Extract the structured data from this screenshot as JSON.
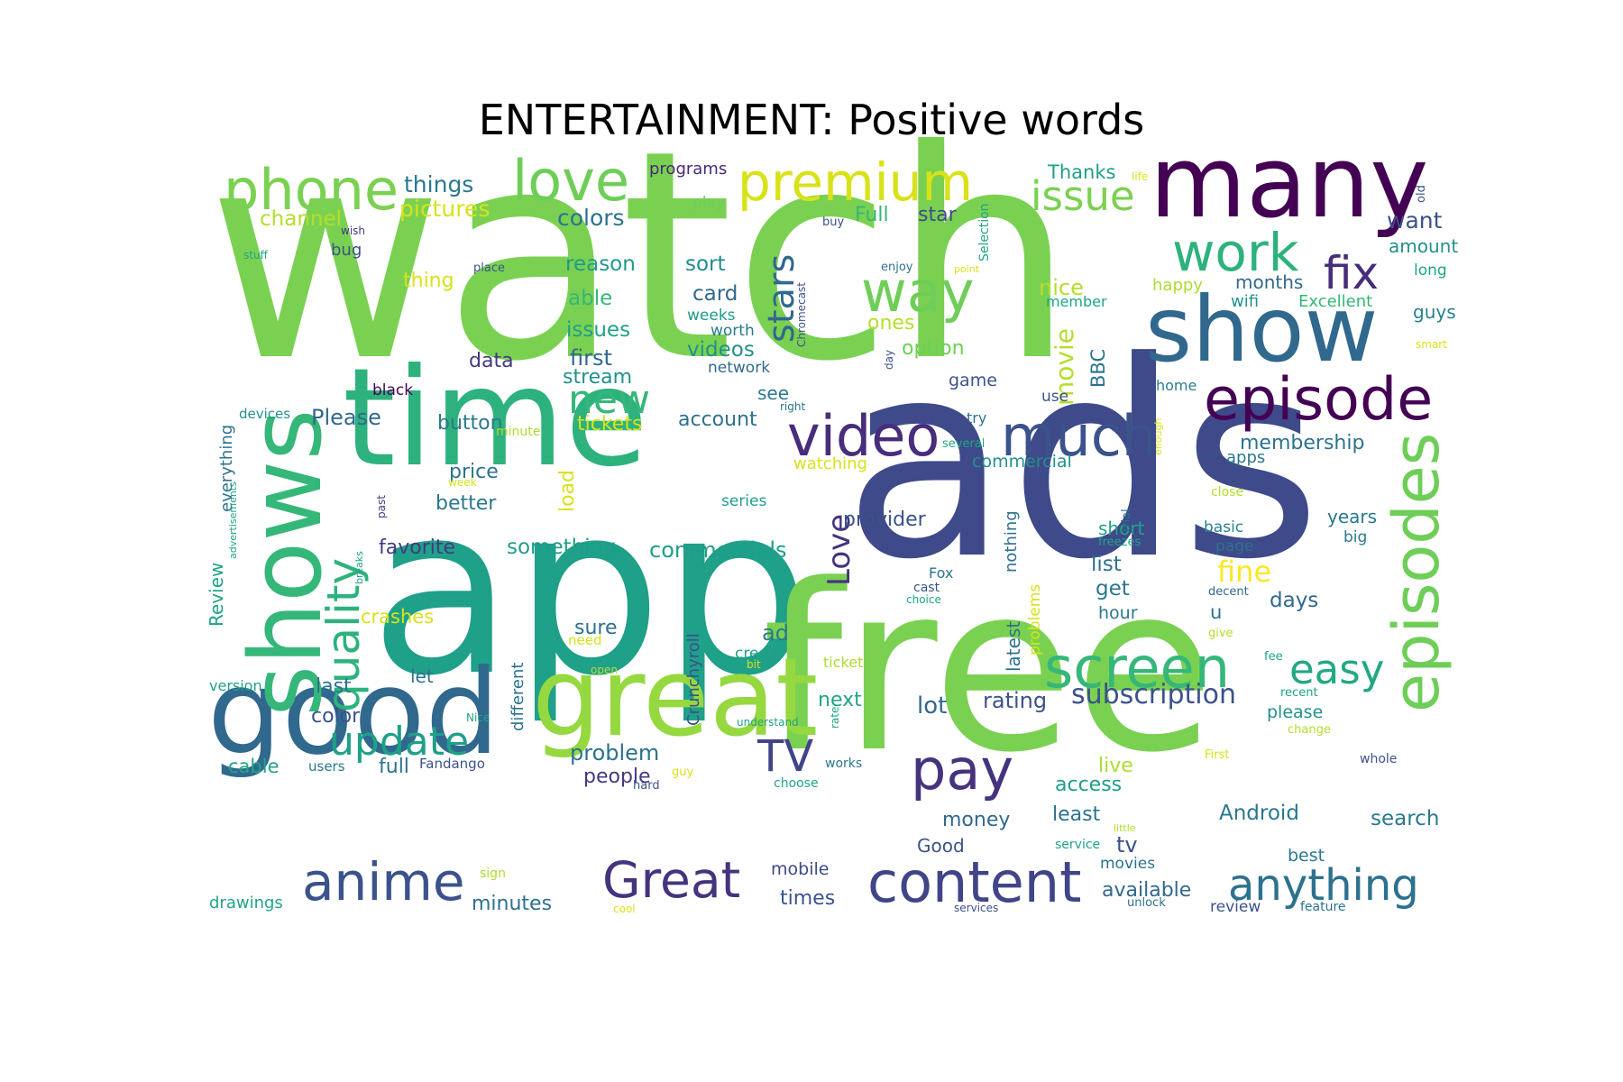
{
  "title": "ENTERTAINMENT: Positive words",
  "words": [
    {
      "text": "watch",
      "color": "#7ad151"
    },
    {
      "text": "ads",
      "color": "#3e4a89"
    },
    {
      "text": "app",
      "color": "#1fa088"
    },
    {
      "text": "free",
      "color": "#7ad151"
    },
    {
      "text": "time",
      "color": "#2db27d"
    },
    {
      "text": "good",
      "color": "#31688e"
    },
    {
      "text": "great",
      "color": "#95d840"
    },
    {
      "text": "many",
      "color": "#440154"
    },
    {
      "text": "show",
      "color": "#31688e"
    },
    {
      "text": "shows",
      "color": "#35b779"
    },
    {
      "text": "episode",
      "color": "#440154"
    },
    {
      "text": "episodes",
      "color": "#6ece58"
    },
    {
      "text": "phone",
      "color": "#7ad151"
    },
    {
      "text": "love",
      "color": "#6ece58"
    },
    {
      "text": "premium",
      "color": "#d8e219"
    },
    {
      "text": "work",
      "color": "#2db27d"
    },
    {
      "text": "way",
      "color": "#6ece58"
    },
    {
      "text": "video",
      "color": "#472d7b"
    },
    {
      "text": "much",
      "color": "#3b528b"
    },
    {
      "text": "screen",
      "color": "#35b779"
    },
    {
      "text": "content",
      "color": "#414487"
    },
    {
      "text": "anime",
      "color": "#3b528b"
    },
    {
      "text": "Great",
      "color": "#46337e"
    },
    {
      "text": "pay",
      "color": "#46337e"
    },
    {
      "text": "anything",
      "color": "#2c728e"
    },
    {
      "text": "fix",
      "color": "#472d7b"
    },
    {
      "text": "issue",
      "color": "#7ad151"
    },
    {
      "text": "quality",
      "color": "#2db27d"
    },
    {
      "text": "update",
      "color": "#1fa088"
    },
    {
      "text": "new",
      "color": "#35b779"
    },
    {
      "text": "TV",
      "color": "#414487"
    },
    {
      "text": "easy",
      "color": "#22a884"
    },
    {
      "text": "stars",
      "color": "#31688e"
    },
    {
      "text": "Love",
      "color": "#46327e"
    },
    {
      "text": "subscription",
      "color": "#3b528b"
    },
    {
      "text": "fine",
      "color": "#fde725"
    },
    {
      "text": "things",
      "color": "#2a788e"
    },
    {
      "text": "pictures",
      "color": "#d8e219"
    },
    {
      "text": "channel",
      "color": "#b5de2b"
    },
    {
      "text": "colors",
      "color": "#2c728e"
    },
    {
      "text": "Full",
      "color": "#35b779"
    },
    {
      "text": "star",
      "color": "#3e4a89"
    },
    {
      "text": "want",
      "color": "#3b528b"
    },
    {
      "text": "amount",
      "color": "#21918c"
    },
    {
      "text": "reason",
      "color": "#1f9a8a"
    },
    {
      "text": "sort",
      "color": "#228c8d"
    },
    {
      "text": "card",
      "color": "#31688e"
    },
    {
      "text": "able",
      "color": "#35b779"
    },
    {
      "text": "issues",
      "color": "#1fa088"
    },
    {
      "text": "first",
      "color": "#31688e"
    },
    {
      "text": "videos",
      "color": "#21918c"
    },
    {
      "text": "stream",
      "color": "#21918c"
    },
    {
      "text": "data",
      "color": "#443983"
    },
    {
      "text": "thing",
      "color": "#d8e219"
    },
    {
      "text": "bug",
      "color": "#3b528b"
    },
    {
      "text": "nice",
      "color": "#b5de2b"
    },
    {
      "text": "ones",
      "color": "#b5de2b"
    },
    {
      "text": "option",
      "color": "#6ece58"
    },
    {
      "text": "movie",
      "color": "#b5de2b"
    },
    {
      "text": "BBC",
      "color": "#2c728e"
    },
    {
      "text": "months",
      "color": "#31688e"
    },
    {
      "text": "wifi",
      "color": "#21918c"
    },
    {
      "text": "Excellent",
      "color": "#35b779"
    },
    {
      "text": "guys",
      "color": "#26828e"
    },
    {
      "text": "happy",
      "color": "#addc30"
    },
    {
      "text": "long",
      "color": "#20a486"
    },
    {
      "text": "member",
      "color": "#20a486"
    },
    {
      "text": "Thanks",
      "color": "#1f9e89"
    },
    {
      "text": "programs",
      "color": "#482878"
    },
    {
      "text": "play",
      "color": "#6ece58"
    },
    {
      "text": "weeks",
      "color": "#1f9a8a"
    },
    {
      "text": "worth",
      "color": "#2a788e"
    },
    {
      "text": "network",
      "color": "#31688e"
    },
    {
      "text": "game",
      "color": "#3b528b"
    },
    {
      "text": "use",
      "color": "#3b528b"
    },
    {
      "text": "home",
      "color": "#27808e"
    },
    {
      "text": "see",
      "color": "#2a788e"
    },
    {
      "text": "tickets",
      "color": "#d8e219"
    },
    {
      "text": "account",
      "color": "#2c728e"
    },
    {
      "text": "Please",
      "color": "#31688e"
    },
    {
      "text": "button",
      "color": "#2a788e"
    },
    {
      "text": "price",
      "color": "#2c728e"
    },
    {
      "text": "better",
      "color": "#2a788e"
    },
    {
      "text": "load",
      "color": "#d8e219"
    },
    {
      "text": "favorite",
      "color": "#443983"
    },
    {
      "text": "something",
      "color": "#1f9e89"
    },
    {
      "text": "commercials",
      "color": "#1f9e89"
    },
    {
      "text": "provider",
      "color": "#3b528b"
    },
    {
      "text": "membership",
      "color": "#2c728e"
    },
    {
      "text": "commercial",
      "color": "#21918c"
    },
    {
      "text": "apps",
      "color": "#2a788e"
    },
    {
      "text": "years",
      "color": "#2a788e"
    },
    {
      "text": "short",
      "color": "#20a486"
    },
    {
      "text": "basic",
      "color": "#26828e"
    },
    {
      "text": "page",
      "color": "#2c728e"
    },
    {
      "text": "big",
      "color": "#2a788e"
    },
    {
      "text": "list",
      "color": "#2c728e"
    },
    {
      "text": "get",
      "color": "#2a788e"
    },
    {
      "text": "hour",
      "color": "#2a788e"
    },
    {
      "text": "u",
      "color": "#2c728e"
    },
    {
      "text": "days",
      "color": "#31688e"
    },
    {
      "text": "crashes",
      "color": "#d8e219"
    },
    {
      "text": "sure",
      "color": "#2c728e"
    },
    {
      "text": "ad",
      "color": "#2a788e"
    },
    {
      "text": "credit",
      "color": "#1f9e89"
    },
    {
      "text": "let",
      "color": "#2c728e"
    },
    {
      "text": "last",
      "color": "#2c728e"
    },
    {
      "text": "color",
      "color": "#3b528b"
    },
    {
      "text": "next",
      "color": "#20a486"
    },
    {
      "text": "lot",
      "color": "#31688e"
    },
    {
      "text": "rating",
      "color": "#3b528b"
    },
    {
      "text": "problem",
      "color": "#2c728e"
    },
    {
      "text": "people",
      "color": "#443983"
    },
    {
      "text": "live",
      "color": "#addc30"
    },
    {
      "text": "access",
      "color": "#1f9e89"
    },
    {
      "text": "least",
      "color": "#2c728e"
    },
    {
      "text": "money",
      "color": "#31688e"
    },
    {
      "text": "Android",
      "color": "#2a788e"
    },
    {
      "text": "search",
      "color": "#2a788e"
    },
    {
      "text": "please",
      "color": "#21918c"
    },
    {
      "text": "best",
      "color": "#2a788e"
    },
    {
      "text": "Good",
      "color": "#3b528b"
    },
    {
      "text": "tv",
      "color": "#3b528b"
    },
    {
      "text": "movies",
      "color": "#2c728e"
    },
    {
      "text": "available",
      "color": "#31688e"
    },
    {
      "text": "review",
      "color": "#3b528b"
    },
    {
      "text": "feature",
      "color": "#2c728e"
    },
    {
      "text": "mobile",
      "color": "#3e4a89"
    },
    {
      "text": "times",
      "color": "#3b528b"
    },
    {
      "text": "minutes",
      "color": "#2c728e"
    },
    {
      "text": "drawings",
      "color": "#20a486"
    },
    {
      "text": "cable",
      "color": "#20a486"
    },
    {
      "text": "full",
      "color": "#2c728e"
    },
    {
      "text": "users",
      "color": "#2a788e"
    },
    {
      "text": "Fandango",
      "color": "#3b528b"
    },
    {
      "text": "version",
      "color": "#20a486"
    },
    {
      "text": "Review",
      "color": "#20a486"
    },
    {
      "text": "everything",
      "color": "#2c728e"
    },
    {
      "text": "devices",
      "color": "#21918c"
    },
    {
      "text": "black",
      "color": "#440154"
    },
    {
      "text": "minute",
      "color": "#addc30"
    },
    {
      "text": "watching",
      "color": "#d8e219"
    },
    {
      "text": "series",
      "color": "#1f9e89"
    },
    {
      "text": "ticket",
      "color": "#addc30"
    },
    {
      "text": "works",
      "color": "#2a788e"
    },
    {
      "text": "whole",
      "color": "#3b528b"
    },
    {
      "text": "First",
      "color": "#d8e219"
    },
    {
      "text": "different",
      "color": "#2c728e"
    },
    {
      "text": "Crunchyroll",
      "color": "#3b528b"
    },
    {
      "text": "latest",
      "color": "#2c728e"
    },
    {
      "text": "nothing",
      "color": "#2c728e"
    },
    {
      "text": "problems",
      "color": "#d8e219"
    },
    {
      "text": "try",
      "color": "#2c728e"
    },
    {
      "text": "several",
      "color": "#20a486"
    },
    {
      "text": "close",
      "color": "#b5de2b"
    },
    {
      "text": "trial",
      "color": "#2c728e"
    },
    {
      "text": "freezes",
      "color": "#20a486"
    },
    {
      "text": "decent",
      "color": "#31688e"
    },
    {
      "text": "give",
      "color": "#b5de2b"
    },
    {
      "text": "fee",
      "color": "#20a486"
    },
    {
      "text": "recent",
      "color": "#20a486"
    },
    {
      "text": "change",
      "color": "#b5de2b"
    },
    {
      "text": "Fox",
      "color": "#2c728e"
    },
    {
      "text": "cast",
      "color": "#3b528b"
    },
    {
      "text": "choice",
      "color": "#20a486"
    },
    {
      "text": "need",
      "color": "#d8e219"
    },
    {
      "text": "open",
      "color": "#b5de2b"
    },
    {
      "text": "bit",
      "color": "#d8e219"
    },
    {
      "text": "understand",
      "color": "#20a486"
    },
    {
      "text": "rate",
      "color": "#20a486"
    },
    {
      "text": "choose",
      "color": "#20a486"
    },
    {
      "text": "hard",
      "color": "#3b528b"
    },
    {
      "text": "guy",
      "color": "#d8e219"
    },
    {
      "text": "Nice",
      "color": "#20a486"
    },
    {
      "text": "sign",
      "color": "#addc30"
    },
    {
      "text": "service",
      "color": "#20a486"
    },
    {
      "text": "little",
      "color": "#b5de2b"
    },
    {
      "text": "unlock",
      "color": "#2c728e"
    },
    {
      "text": "services",
      "color": "#3b528b"
    },
    {
      "text": "cool",
      "color": "#d8e219"
    },
    {
      "text": "week",
      "color": "#d8e219"
    },
    {
      "text": "advertisements",
      "color": "#20a486"
    },
    {
      "text": "breaks",
      "color": "#20a486"
    },
    {
      "text": "past",
      "color": "#443983"
    },
    {
      "text": "stuff",
      "color": "#20a486"
    },
    {
      "text": "wish",
      "color": "#443983"
    },
    {
      "text": "place",
      "color": "#3b528b"
    },
    {
      "text": "buy",
      "color": "#3b528b"
    },
    {
      "text": "enjoy",
      "color": "#2c728e"
    },
    {
      "text": "point",
      "color": "#d8e219"
    },
    {
      "text": "Selection",
      "color": "#20a486"
    },
    {
      "text": "Chromecast",
      "color": "#3b528b"
    },
    {
      "text": "day",
      "color": "#3b528b"
    },
    {
      "text": "right",
      "color": "#2c728e"
    },
    {
      "text": "back",
      "color": "#3b528b"
    },
    {
      "text": "enough",
      "color": "#d8e219"
    },
    {
      "text": "old",
      "color": "#3b528b"
    },
    {
      "text": "life",
      "color": "#d8e219"
    },
    {
      "text": "smart",
      "color": "#d8e219"
    }
  ]
}
